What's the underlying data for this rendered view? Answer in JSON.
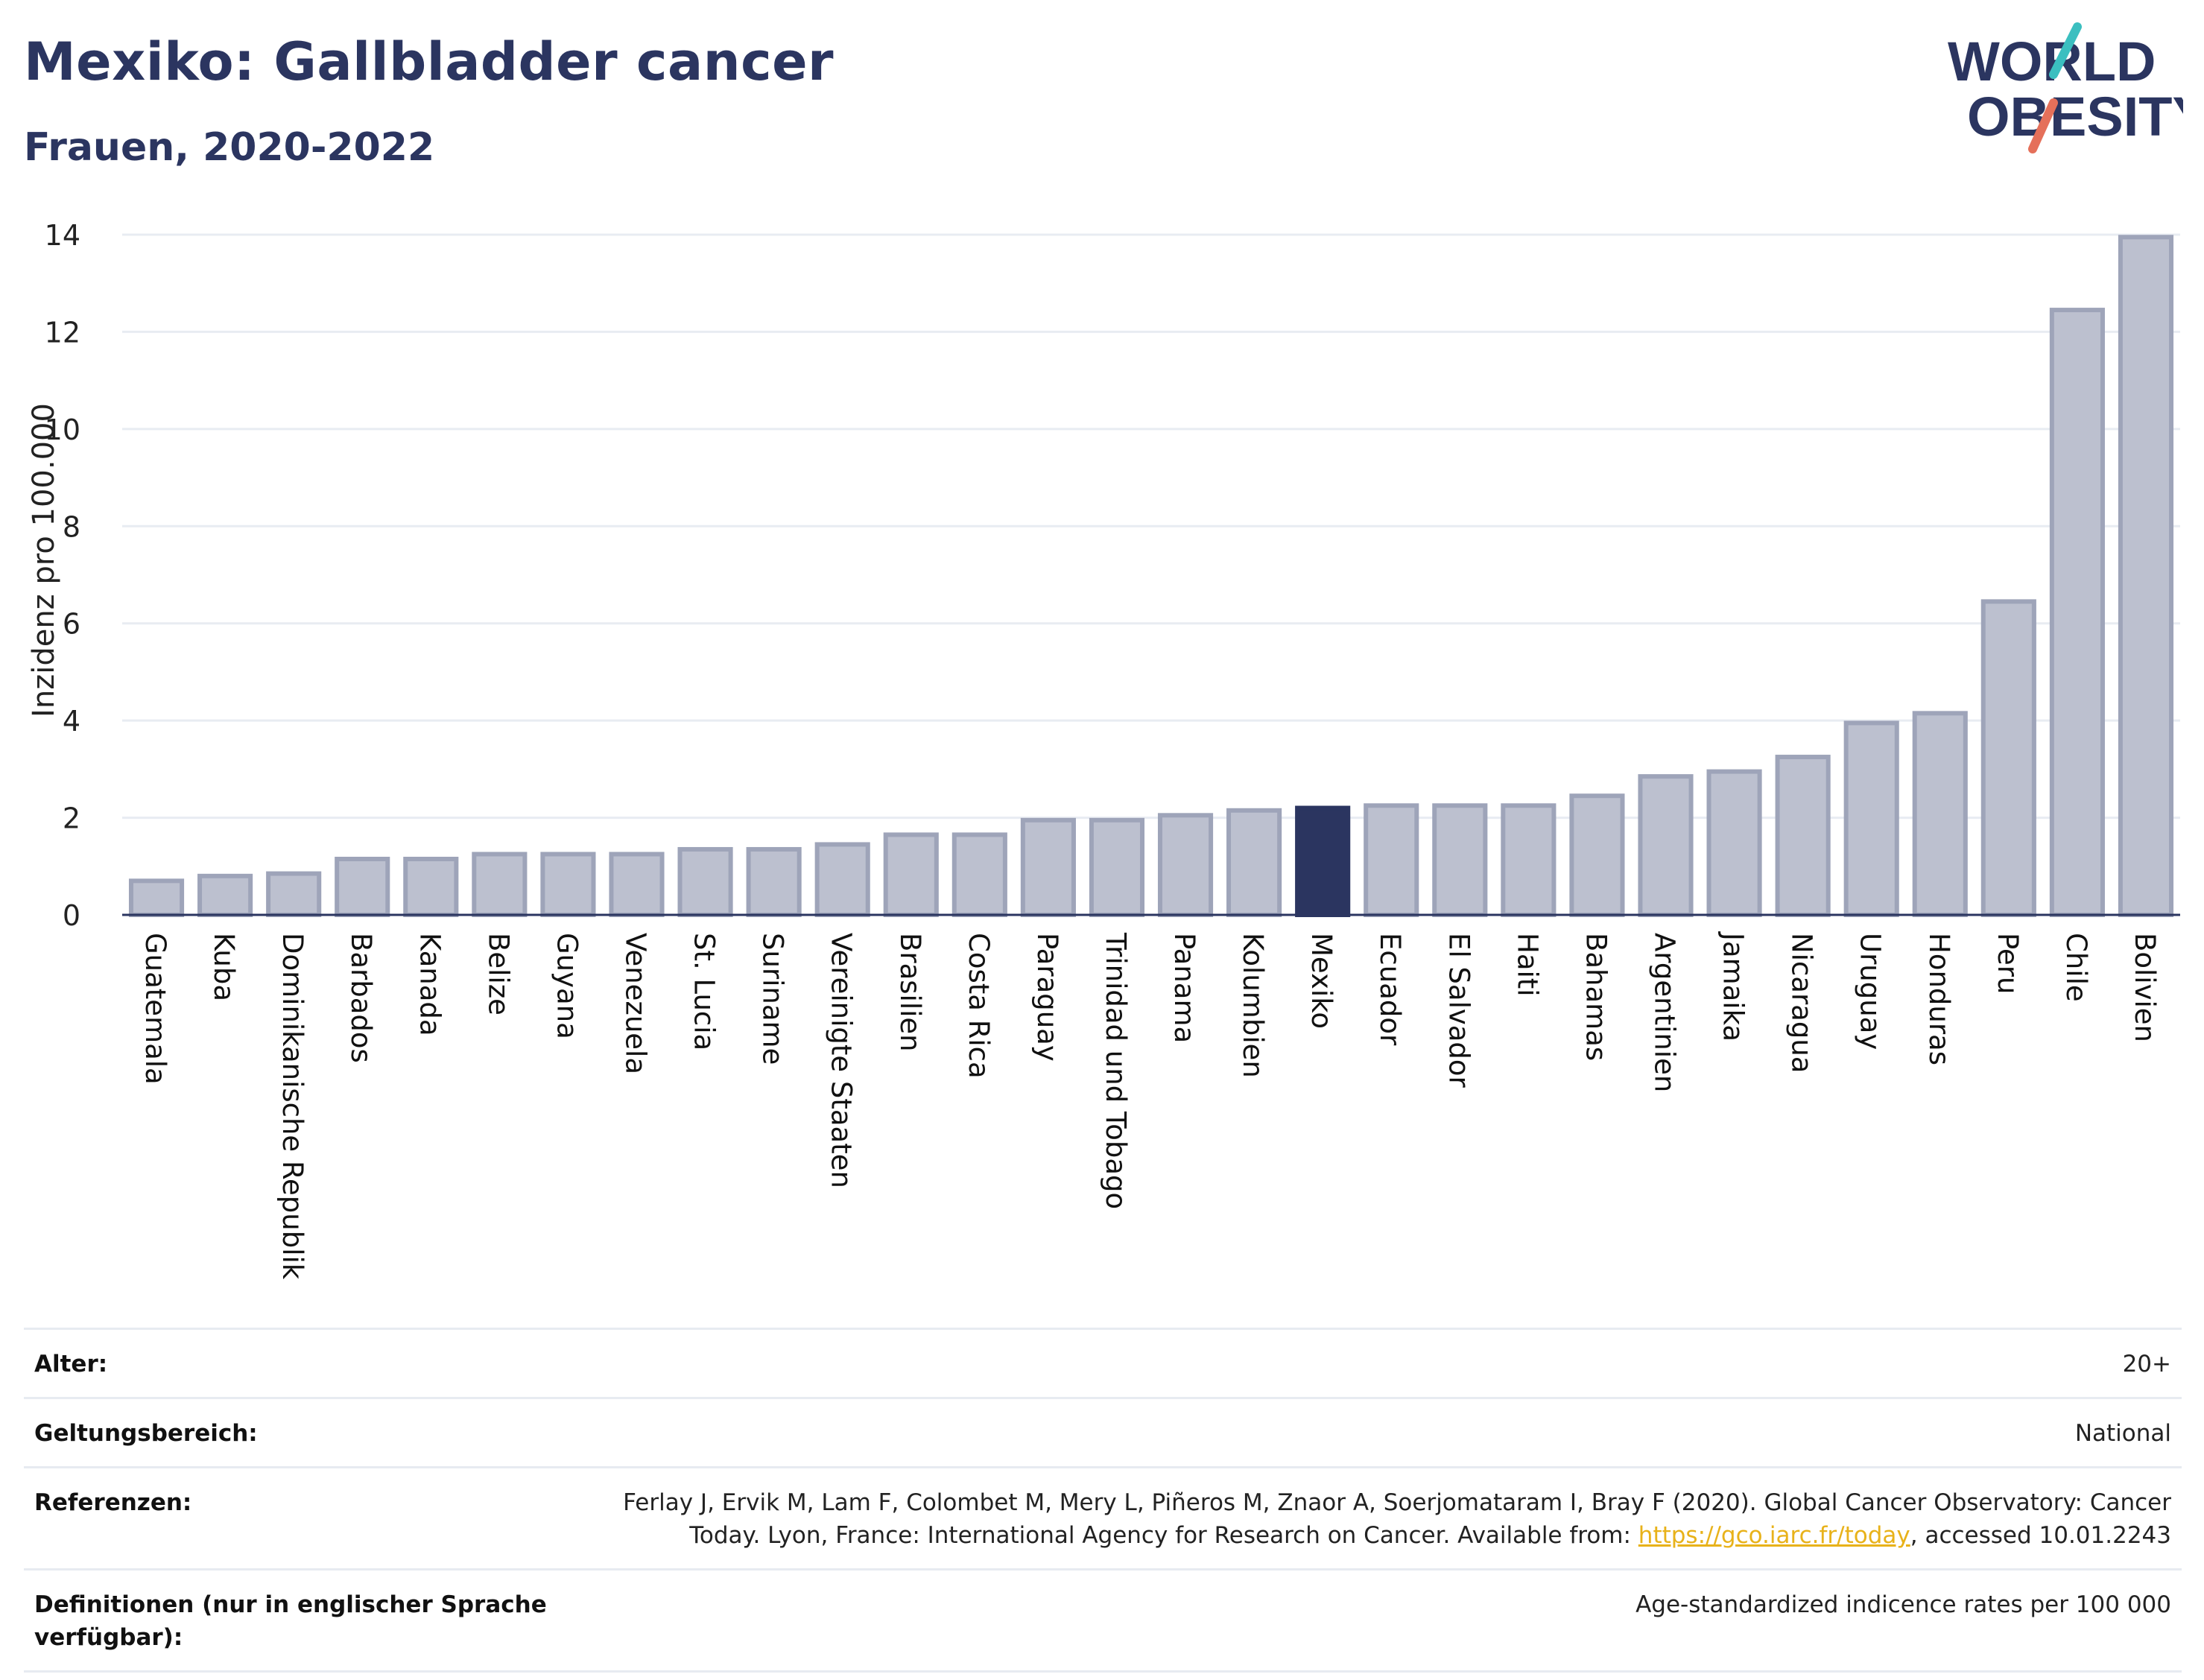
{
  "header": {
    "title": "Mexiko: Gallbladder cancer",
    "subtitle": "Frauen, 2020-2022",
    "logo_text_1": "WORLD",
    "logo_text_2": "OBESITY"
  },
  "colors": {
    "title": "#2b3560",
    "bar_default": "#bcc0cf",
    "bar_border": "#9ea4b9",
    "bar_highlight": "#2b3560",
    "grid": "#e8ecf2",
    "link": "#e8b21a",
    "logo_teal": "#3bbfc0",
    "logo_red": "#e5705a"
  },
  "chart_data": {
    "type": "bar",
    "title": "Mexiko: Gallbladder cancer",
    "subtitle": "Frauen, 2020-2022",
    "ylabel": "Inzidenz pro 100.000",
    "xlabel": "",
    "ylim": [
      0,
      14
    ],
    "yticks": [
      0,
      2,
      4,
      6,
      8,
      10,
      12,
      14
    ],
    "grid": true,
    "highlight": "Mexiko",
    "categories": [
      "Guatemala",
      "Kuba",
      "Dominikanische Republik",
      "Barbados",
      "Kanada",
      "Belize",
      "Guyana",
      "Venezuela",
      "St. Lucia",
      "Suriname",
      "Vereinigte Staaten",
      "Brasilien",
      "Costa Rica",
      "Paraguay",
      "Trinidad und Tobago",
      "Panama",
      "Kolumbien",
      "Mexiko",
      "Ecuador",
      "El Salvador",
      "Haiti",
      "Bahamas",
      "Argentinien",
      "Jamaika",
      "Nicaragua",
      "Uruguay",
      "Honduras",
      "Peru",
      "Chile",
      "Bolivien"
    ],
    "values": [
      0.7,
      0.8,
      0.85,
      1.15,
      1.15,
      1.25,
      1.25,
      1.25,
      1.35,
      1.35,
      1.45,
      1.65,
      1.65,
      1.95,
      1.95,
      2.05,
      2.15,
      2.2,
      2.25,
      2.25,
      2.25,
      2.45,
      2.85,
      2.95,
      3.25,
      3.95,
      4.15,
      6.45,
      12.45,
      13.95
    ]
  },
  "info": {
    "age_label": "Alter:",
    "age_value": "20+",
    "scope_label": "Geltungsbereich:",
    "scope_value": "National",
    "ref_label": "Referenzen:",
    "ref_text_1": "Ferlay J, Ervik M, Lam F, Colombet M, Mery L, Piñeros M, Znaor A, Soerjomataram I, Bray F (2020). Global Cancer Observatory: Cancer Today. Lyon, France: International Agency for Research on Cancer. Available from: ",
    "ref_link": "https://gco.iarc.fr/today",
    "ref_text_2": ", accessed 10.01.2243",
    "def_label": "Definitionen (nur in englischer Sprache verfügbar):",
    "def_value": "Age-standardized indicence rates per 100 000"
  }
}
